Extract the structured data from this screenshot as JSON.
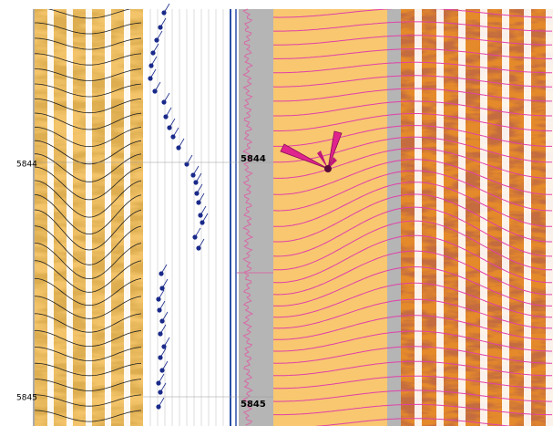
{
  "depth_axis": {
    "labels": [
      "5844",
      "5845"
    ]
  },
  "track_markers": {
    "labels": [
      "5844",
      "5845"
    ]
  }
}
